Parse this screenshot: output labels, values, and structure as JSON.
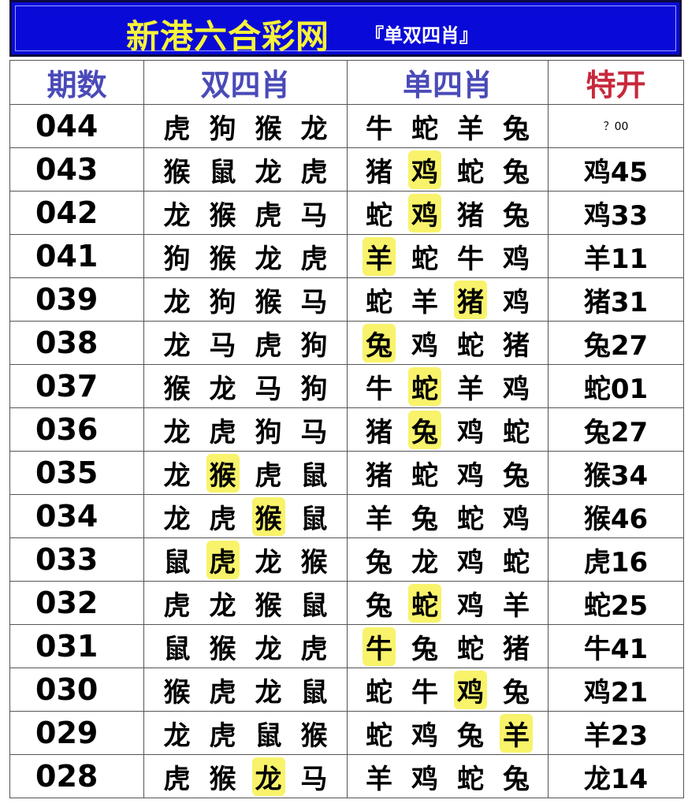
{
  "header": {
    "title": "新港六合彩网",
    "subtitle": "『单双四肖』"
  },
  "columns": [
    "期数",
    "双四肖",
    "单四肖",
    "特开"
  ],
  "highlight_color": "#f8f36a",
  "rows": [
    {
      "period": "044",
      "double": [
        "虎",
        "狗",
        "猴",
        "龙"
      ],
      "single": [
        "牛",
        "蛇",
        "羊",
        "兔"
      ],
      "special": "？00",
      "hd": -1,
      "hs": -1
    },
    {
      "period": "043",
      "double": [
        "猴",
        "鼠",
        "龙",
        "虎"
      ],
      "single": [
        "猪",
        "鸡",
        "蛇",
        "兔"
      ],
      "special": "鸡45",
      "hd": -1,
      "hs": 1
    },
    {
      "period": "042",
      "double": [
        "龙",
        "猴",
        "虎",
        "马"
      ],
      "single": [
        "蛇",
        "鸡",
        "猪",
        "兔"
      ],
      "special": "鸡33",
      "hd": -1,
      "hs": 1
    },
    {
      "period": "041",
      "double": [
        "狗",
        "猴",
        "龙",
        "虎"
      ],
      "single": [
        "羊",
        "蛇",
        "牛",
        "鸡"
      ],
      "special": "羊11",
      "hd": -1,
      "hs": 0
    },
    {
      "period": "039",
      "double": [
        "龙",
        "狗",
        "猴",
        "马"
      ],
      "single": [
        "蛇",
        "羊",
        "猪",
        "鸡"
      ],
      "special": "猪31",
      "hd": -1,
      "hs": 2
    },
    {
      "period": "038",
      "double": [
        "龙",
        "马",
        "虎",
        "狗"
      ],
      "single": [
        "兔",
        "鸡",
        "蛇",
        "猪"
      ],
      "special": "兔27",
      "hd": -1,
      "hs": 0
    },
    {
      "period": "037",
      "double": [
        "猴",
        "龙",
        "马",
        "狗"
      ],
      "single": [
        "牛",
        "蛇",
        "羊",
        "鸡"
      ],
      "special": "蛇01",
      "hd": -1,
      "hs": 1
    },
    {
      "period": "036",
      "double": [
        "龙",
        "虎",
        "狗",
        "马"
      ],
      "single": [
        "猪",
        "兔",
        "鸡",
        "蛇"
      ],
      "special": "兔27",
      "hd": -1,
      "hs": 1
    },
    {
      "period": "035",
      "double": [
        "龙",
        "猴",
        "虎",
        "鼠"
      ],
      "single": [
        "猪",
        "蛇",
        "鸡",
        "兔"
      ],
      "special": "猴34",
      "hd": 1,
      "hs": -1
    },
    {
      "period": "034",
      "double": [
        "龙",
        "虎",
        "猴",
        "鼠"
      ],
      "single": [
        "羊",
        "兔",
        "蛇",
        "鸡"
      ],
      "special": "猴46",
      "hd": 2,
      "hs": -1
    },
    {
      "period": "033",
      "double": [
        "鼠",
        "虎",
        "龙",
        "猴"
      ],
      "single": [
        "兔",
        "龙",
        "鸡",
        "蛇"
      ],
      "special": "虎16",
      "hd": 1,
      "hs": -1
    },
    {
      "period": "032",
      "double": [
        "虎",
        "龙",
        "猴",
        "鼠"
      ],
      "single": [
        "兔",
        "蛇",
        "鸡",
        "羊"
      ],
      "special": "蛇25",
      "hd": -1,
      "hs": 1
    },
    {
      "period": "031",
      "double": [
        "鼠",
        "猴",
        "龙",
        "虎"
      ],
      "single": [
        "牛",
        "兔",
        "蛇",
        "猪"
      ],
      "special": "牛41",
      "hd": -1,
      "hs": 0
    },
    {
      "period": "030",
      "double": [
        "猴",
        "虎",
        "龙",
        "鼠"
      ],
      "single": [
        "蛇",
        "牛",
        "鸡",
        "兔"
      ],
      "special": "鸡21",
      "hd": -1,
      "hs": 2
    },
    {
      "period": "029",
      "double": [
        "龙",
        "虎",
        "鼠",
        "猴"
      ],
      "single": [
        "蛇",
        "鸡",
        "兔",
        "羊"
      ],
      "special": "羊23",
      "hd": -1,
      "hs": 3
    },
    {
      "period": "028",
      "double": [
        "虎",
        "猴",
        "龙",
        "马"
      ],
      "single": [
        "羊",
        "鸡",
        "蛇",
        "兔"
      ],
      "special": "龙14",
      "hd": 2,
      "hs": -1
    }
  ]
}
